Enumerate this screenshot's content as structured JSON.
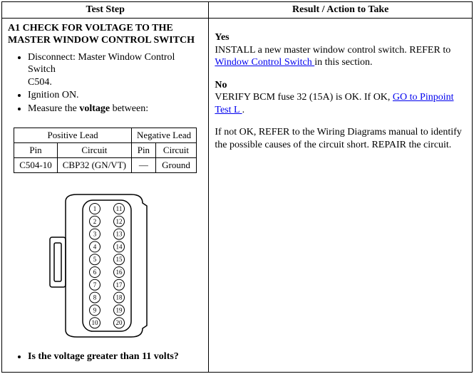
{
  "header": {
    "left": "Test Step",
    "right": "Result / Action to Take"
  },
  "step": {
    "title_line1": "A1 CHECK FOR VOLTAGE TO THE",
    "title_line2": "MASTER WINDOW CONTROL SWITCH",
    "bullets": {
      "b1a": "Disconnect: Master Window Control Switch",
      "b1b": "C504.",
      "b2": "Ignition ON.",
      "b3_pre": "Measure the ",
      "b3_bold": "voltage",
      "b3_post": " between:"
    },
    "leads": {
      "pos_header": "Positive Lead",
      "neg_header": "Negative Lead",
      "pin_label": "Pin",
      "circuit_label": "Circuit",
      "row": {
        "pos_pin": "C504-10",
        "pos_circuit": "CBP32 (GN/VT)",
        "neg_pin": "—",
        "neg_circuit": "Ground"
      }
    },
    "question_pre": "Is the voltage greater than 11 volts?"
  },
  "connector": {
    "pins_left": [
      "1",
      "2",
      "3",
      "4",
      "5",
      "6",
      "7",
      "8",
      "9",
      "10"
    ],
    "pins_right": [
      "11",
      "12",
      "13",
      "14",
      "15",
      "16",
      "17",
      "18",
      "19",
      "20"
    ]
  },
  "result": {
    "yes_label": "Yes",
    "yes_text_pre": "INSTALL a new master window control switch. REFER to ",
    "yes_link": "Window Control Switch ",
    "yes_text_post": "in this section.",
    "no_label": "No",
    "no_text_pre": "VERIFY BCM fuse 32 (15A) is OK. If OK, ",
    "no_link": "GO to Pinpoint Test L ",
    "no_text_post": ".",
    "no_para2": "If not OK, REFER to the Wiring Diagrams manual to identify the possible causes of the circuit short. REPAIR the circuit."
  }
}
